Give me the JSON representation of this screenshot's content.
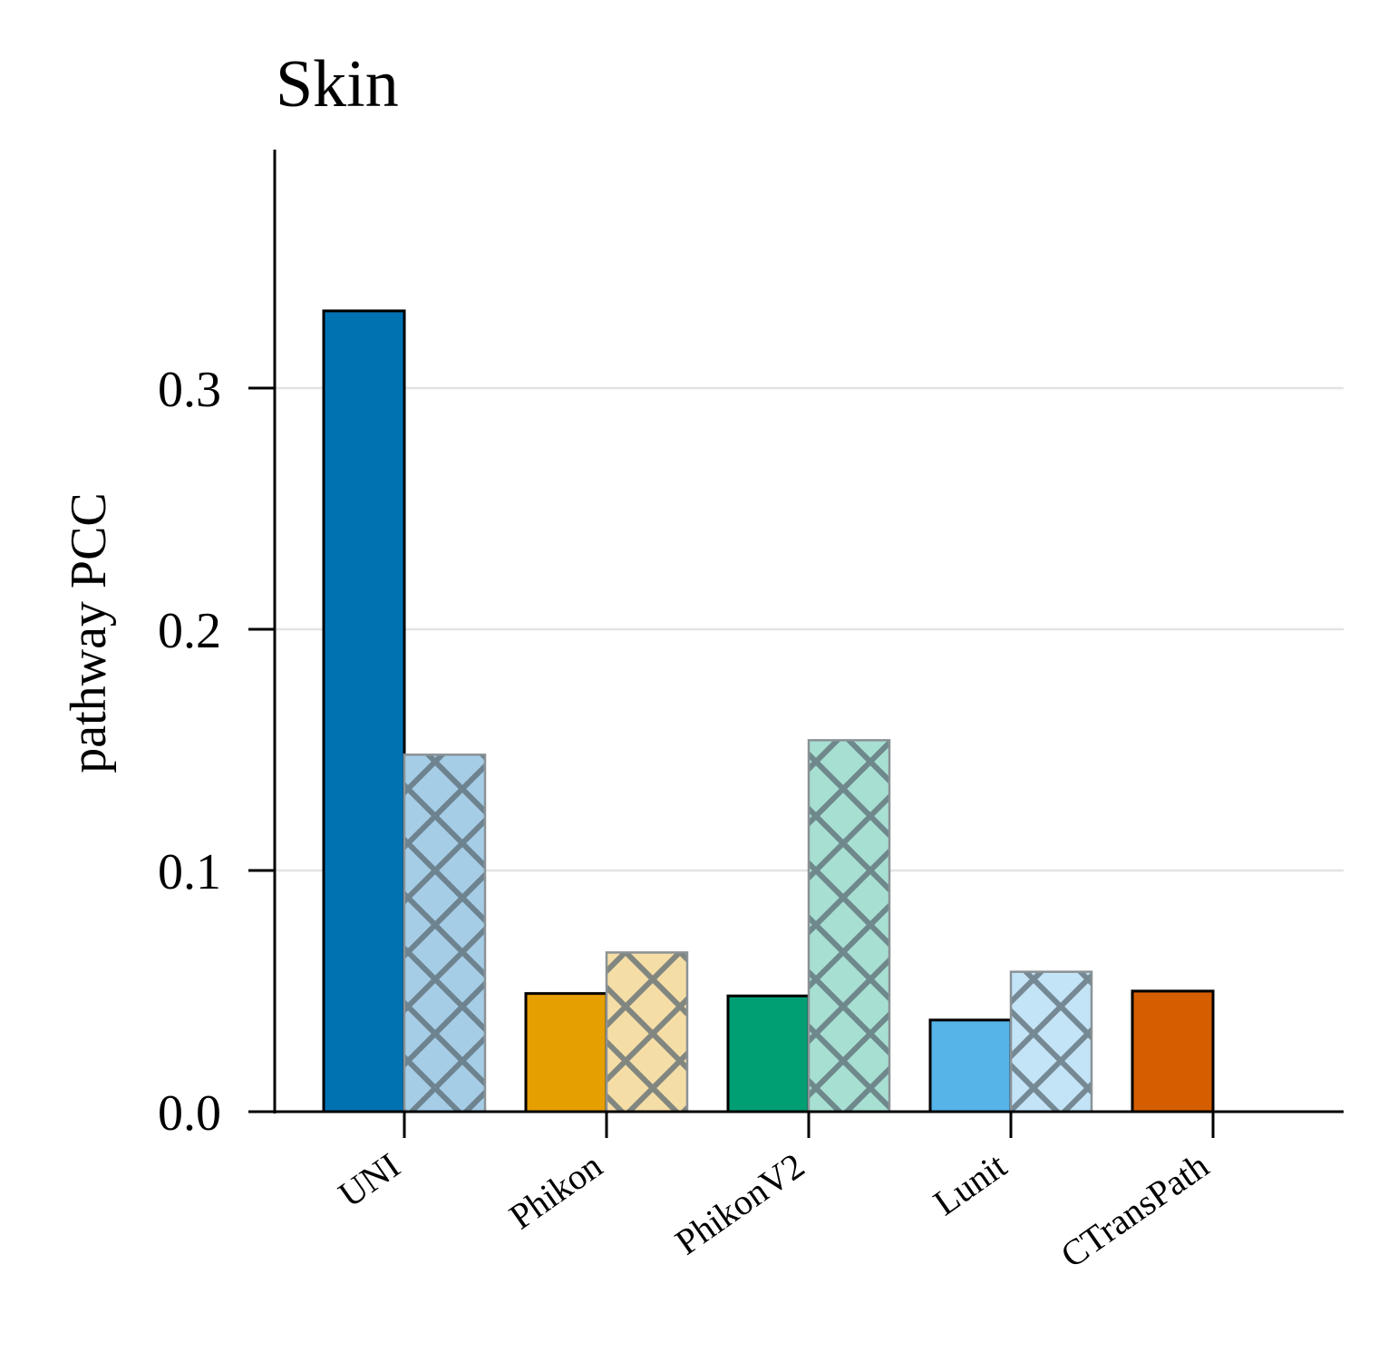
{
  "chart_data": {
    "type": "bar",
    "title": "Skin",
    "xlabel": "",
    "ylabel": "pathway PCC",
    "ylim": [
      0,
      0.4
    ],
    "yticks": [
      0.0,
      0.1,
      0.2,
      0.3
    ],
    "ytick_labels": [
      "0.0",
      "0.1",
      "0.2",
      "0.3"
    ],
    "grid": "horizontal",
    "legend": "none",
    "categories": [
      "UNI",
      "Phikon",
      "PhikonV2",
      "Lunit",
      "CTransPath"
    ],
    "series": [
      {
        "style": "solid",
        "values": [
          0.332,
          0.049,
          0.048,
          0.038,
          0.05
        ],
        "colors": [
          "#0072B2",
          "#E69F00",
          "#009E73",
          "#56B4E9",
          "#D55E00"
        ]
      },
      {
        "style": "hatched",
        "values": [
          0.148,
          0.066,
          0.154,
          0.058,
          null
        ],
        "colors": [
          "#A6CDE6",
          "#F5DDA6",
          "#A7DFD2",
          "#C3E3F7",
          "#F1C1A0"
        ]
      }
    ]
  }
}
